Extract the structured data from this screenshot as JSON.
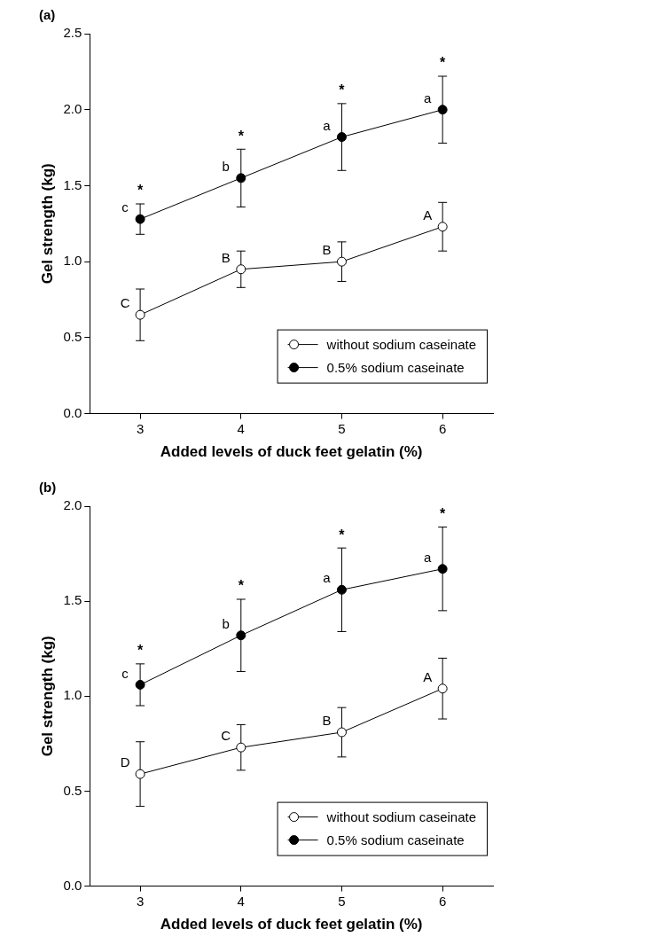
{
  "chart_data": [
    {
      "type": "line",
      "title": "(a)",
      "x_label": "Added levels of duck feet gelatin (%)",
      "y_label": "Gel strength (kg)",
      "x": [
        3,
        4,
        5,
        6
      ],
      "xlim": [
        2.5,
        6.5
      ],
      "xticks": [
        3,
        4,
        5,
        6
      ],
      "ylim": [
        0,
        2.5
      ],
      "yticks": [
        {
          "value": 0,
          "label": "0.0"
        },
        {
          "value": 0.5,
          "label": "0.5"
        },
        {
          "value": 1,
          "label": "1.0"
        },
        {
          "value": 1.5,
          "label": "1.5"
        },
        {
          "value": 2,
          "label": "2.0"
        },
        {
          "value": 2.5,
          "label": "2.5"
        }
      ],
      "grid": false,
      "legend": "lower right",
      "significance": [
        "*",
        "*",
        "*",
        "*"
      ],
      "series": [
        {
          "name": "without sodium caseinate",
          "color": "#000000",
          "marker": "open_circle",
          "line_style": "solid",
          "values": [
            0.65,
            0.95,
            1.0,
            1.23
          ],
          "errors": [
            0.17,
            0.12,
            0.13,
            0.16
          ],
          "letters": [
            "C",
            "B",
            "B",
            "A"
          ]
        },
        {
          "name": "0.5% sodium caseinate",
          "color": "#000000",
          "marker": "circle",
          "line_style": "solid",
          "values": [
            1.28,
            1.55,
            1.82,
            2.0
          ],
          "errors": [
            0.1,
            0.19,
            0.22,
            0.22
          ],
          "letters": [
            "c",
            "b",
            "a",
            "a"
          ]
        }
      ]
    },
    {
      "type": "line",
      "title": "(b)",
      "x_label": "Added levels of duck feet gelatin (%)",
      "y_label": "Gel strength (kg)",
      "x": [
        3,
        4,
        5,
        6
      ],
      "xlim": [
        2.5,
        6.5
      ],
      "xticks": [
        3,
        4,
        5,
        6
      ],
      "ylim": [
        0,
        2
      ],
      "yticks": [
        {
          "value": 0,
          "label": "0.0"
        },
        {
          "value": 0.5,
          "label": "0.5"
        },
        {
          "value": 1,
          "label": "1.0"
        },
        {
          "value": 1.5,
          "label": "1.5"
        },
        {
          "value": 2,
          "label": "2.0"
        }
      ],
      "grid": false,
      "legend": "lower right",
      "significance": [
        "*",
        "*",
        "*",
        "*"
      ],
      "series": [
        {
          "name": "without sodium caseinate",
          "color": "#000000",
          "marker": "open_circle",
          "line_style": "solid",
          "values": [
            0.59,
            0.73,
            0.81,
            1.04
          ],
          "errors": [
            0.17,
            0.12,
            0.13,
            0.16
          ],
          "letters": [
            "D",
            "C",
            "B",
            "A"
          ]
        },
        {
          "name": "0.5% sodium caseinate",
          "color": "#000000",
          "marker": "circle",
          "line_style": "solid",
          "values": [
            1.06,
            1.32,
            1.56,
            1.67
          ],
          "errors": [
            0.11,
            0.19,
            0.22,
            0.22
          ],
          "letters": [
            "c",
            "b",
            "a",
            "a"
          ]
        }
      ]
    }
  ]
}
